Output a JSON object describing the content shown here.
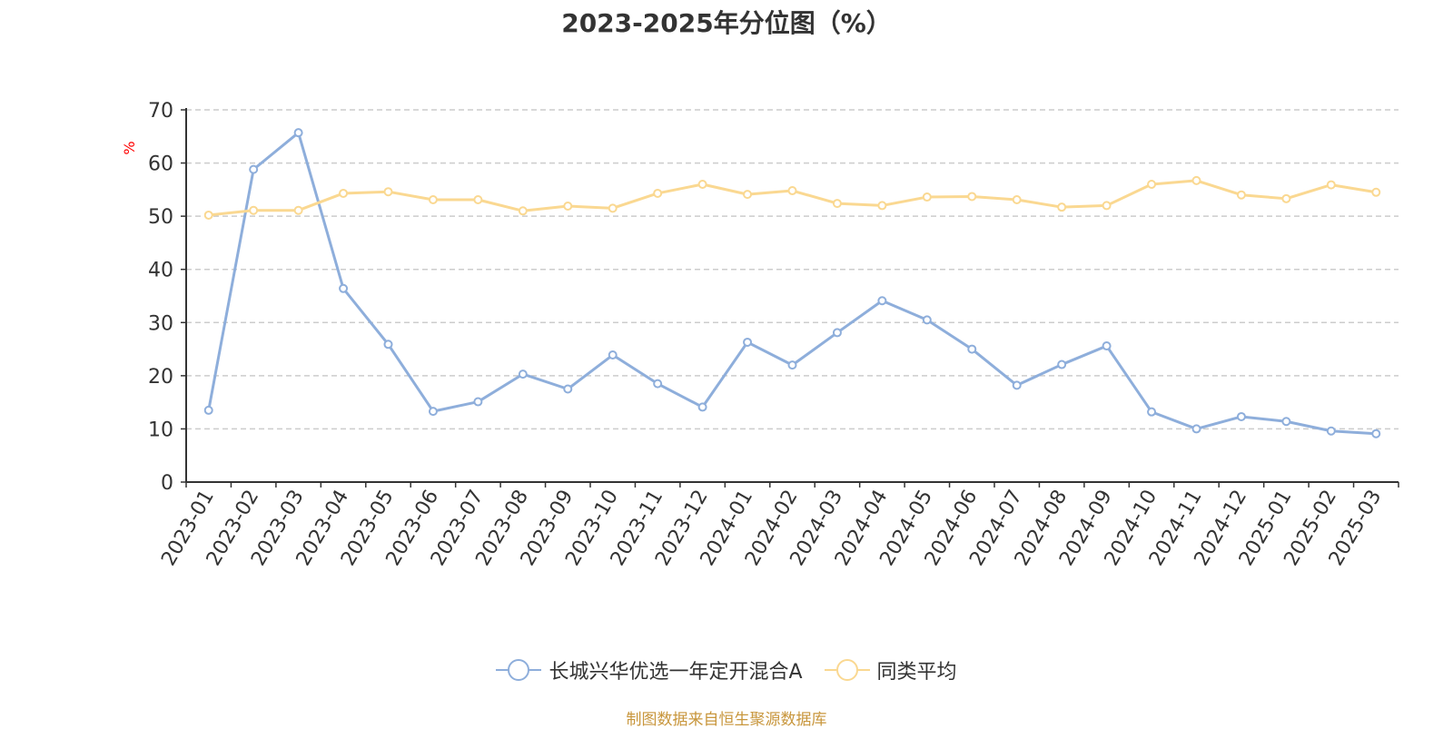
{
  "chart_data": {
    "type": "line",
    "title": "2023-2025年分位图（%）",
    "ylabel": "%",
    "ylim": [
      0,
      70
    ],
    "yticks": [
      0,
      10,
      20,
      30,
      40,
      50,
      60,
      70
    ],
    "grid": true,
    "legend_position": "bottom",
    "categories": [
      "2023-01",
      "2023-02",
      "2023-03",
      "2023-04",
      "2023-05",
      "2023-06",
      "2023-07",
      "2023-08",
      "2023-09",
      "2023-10",
      "2023-11",
      "2023-12",
      "2024-01",
      "2024-02",
      "2024-03",
      "2024-04",
      "2024-05",
      "2024-06",
      "2024-07",
      "2024-08",
      "2024-09",
      "2024-10",
      "2024-11",
      "2024-12",
      "2025-01",
      "2025-02",
      "2025-03"
    ],
    "series": [
      {
        "name": "长城兴华优选一年定开混合A",
        "color": "#8eaedb",
        "values": [
          13.5,
          58.8,
          65.7,
          36.4,
          25.9,
          13.3,
          15.1,
          20.3,
          17.5,
          23.9,
          18.5,
          14.1,
          26.3,
          22.0,
          28.1,
          34.1,
          30.5,
          25.0,
          18.2,
          22.1,
          25.6,
          13.2,
          10.0,
          12.3,
          11.4,
          9.6,
          9.1
        ]
      },
      {
        "name": "同类平均",
        "color": "#fad891",
        "values": [
          50.2,
          51.1,
          51.1,
          54.3,
          54.6,
          53.1,
          53.1,
          51.0,
          51.9,
          51.5,
          54.3,
          56.0,
          54.1,
          54.8,
          52.4,
          52.0,
          53.6,
          53.7,
          53.1,
          51.7,
          52.0,
          56.0,
          56.7,
          54.0,
          53.3,
          55.9,
          54.5
        ]
      }
    ],
    "source": "制图数据来自恒生聚源数据库"
  }
}
